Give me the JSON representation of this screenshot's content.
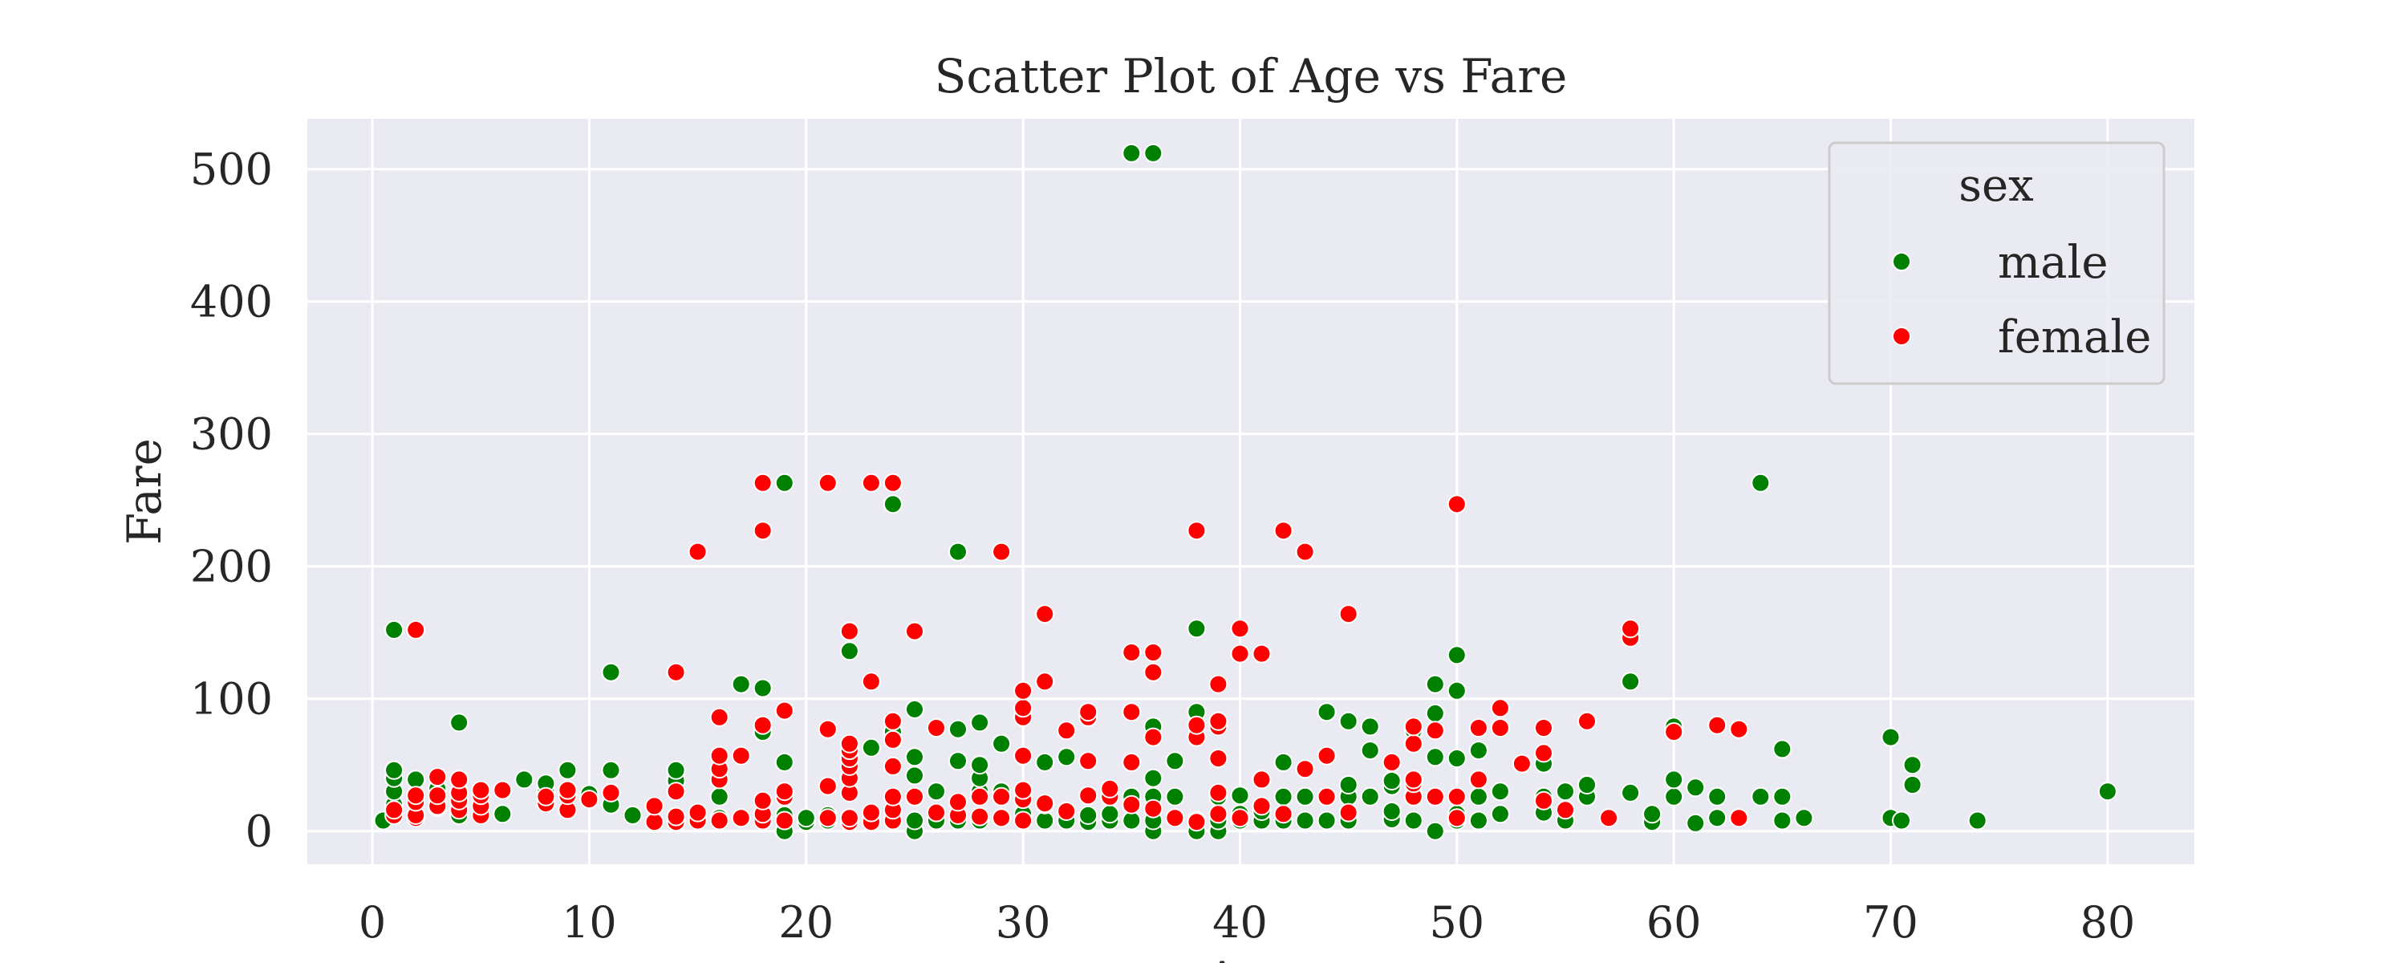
{
  "chart_data": {
    "type": "scatter",
    "title": "Scatter Plot of Age vs Fare",
    "xlabel": "Age",
    "ylabel": "Fare",
    "xlim": [
      -3,
      84
    ],
    "ylim": [
      -25,
      538
    ],
    "xticks": [
      0,
      10,
      20,
      30,
      40,
      50,
      60,
      70,
      80
    ],
    "yticks": [
      0,
      100,
      200,
      300,
      400,
      500
    ],
    "grid": true,
    "legend": {
      "title": "sex",
      "placement": "top-right"
    },
    "series": [
      {
        "name": "male",
        "color": "#008000",
        "points": [
          [
            0.5,
            8
          ],
          [
            1,
            20
          ],
          [
            1,
            30
          ],
          [
            1,
            40
          ],
          [
            1,
            46
          ],
          [
            1,
            152
          ],
          [
            2,
            39
          ],
          [
            3,
            18
          ],
          [
            3,
            25
          ],
          [
            3,
            32
          ],
          [
            4,
            12
          ],
          [
            4,
            30
          ],
          [
            4,
            82
          ],
          [
            5,
            28
          ],
          [
            6,
            13
          ],
          [
            7,
            39
          ],
          [
            8,
            30
          ],
          [
            8,
            36
          ],
          [
            9,
            46
          ],
          [
            10,
            28
          ],
          [
            11,
            20
          ],
          [
            11,
            46
          ],
          [
            11,
            120
          ],
          [
            12,
            12
          ],
          [
            14,
            11
          ],
          [
            14,
            38
          ],
          [
            14,
            46
          ],
          [
            16,
            10
          ],
          [
            16,
            26
          ],
          [
            17,
            10
          ],
          [
            17,
            111
          ],
          [
            18,
            9
          ],
          [
            18,
            75
          ],
          [
            18,
            108
          ],
          [
            19,
            0
          ],
          [
            19,
            8
          ],
          [
            19,
            12
          ],
          [
            19,
            52
          ],
          [
            19,
            263
          ],
          [
            20,
            7
          ],
          [
            20,
            10
          ],
          [
            21,
            8
          ],
          [
            21,
            12
          ],
          [
            22,
            10
          ],
          [
            22,
            136
          ],
          [
            23,
            9
          ],
          [
            23,
            63
          ],
          [
            24,
            9
          ],
          [
            24,
            15
          ],
          [
            24,
            75
          ],
          [
            24,
            247
          ],
          [
            25,
            0
          ],
          [
            25,
            8
          ],
          [
            25,
            42
          ],
          [
            25,
            56
          ],
          [
            25,
            92
          ],
          [
            26,
            8
          ],
          [
            26,
            30
          ],
          [
            27,
            8
          ],
          [
            27,
            53
          ],
          [
            27,
            77
          ],
          [
            27,
            211
          ],
          [
            28,
            8
          ],
          [
            28,
            30
          ],
          [
            28,
            40
          ],
          [
            28,
            50
          ],
          [
            28,
            82
          ],
          [
            29,
            10
          ],
          [
            29,
            30
          ],
          [
            29,
            66
          ],
          [
            30,
            8
          ],
          [
            30,
            13
          ],
          [
            30,
            30
          ],
          [
            31,
            8
          ],
          [
            31,
            20
          ],
          [
            31,
            52
          ],
          [
            32,
            8
          ],
          [
            32,
            56
          ],
          [
            32,
            76
          ],
          [
            33,
            7
          ],
          [
            33,
            12
          ],
          [
            34,
            8
          ],
          [
            34,
            13
          ],
          [
            34,
            26
          ],
          [
            35,
            8
          ],
          [
            35,
            26
          ],
          [
            35,
            512
          ],
          [
            36,
            0
          ],
          [
            36,
            8
          ],
          [
            36,
            26
          ],
          [
            36,
            40
          ],
          [
            36,
            79
          ],
          [
            36,
            512
          ],
          [
            37,
            26
          ],
          [
            37,
            53
          ],
          [
            38,
            0
          ],
          [
            38,
            8
          ],
          [
            38,
            90
          ],
          [
            38,
            153
          ],
          [
            39,
            0
          ],
          [
            39,
            8
          ],
          [
            39,
            26
          ],
          [
            40,
            8
          ],
          [
            40,
            13
          ],
          [
            40,
            27
          ],
          [
            41,
            8
          ],
          [
            41,
            15
          ],
          [
            42,
            8
          ],
          [
            42,
            26
          ],
          [
            42,
            52
          ],
          [
            43,
            8
          ],
          [
            43,
            26
          ],
          [
            44,
            8
          ],
          [
            44,
            26
          ],
          [
            44,
            90
          ],
          [
            45,
            8
          ],
          [
            45,
            26
          ],
          [
            45,
            35
          ],
          [
            45,
            83
          ],
          [
            46,
            26
          ],
          [
            46,
            61
          ],
          [
            46,
            79
          ],
          [
            47,
            9
          ],
          [
            47,
            15
          ],
          [
            47,
            34
          ],
          [
            47,
            38
          ],
          [
            48,
            8
          ],
          [
            48,
            27
          ],
          [
            48,
            76
          ],
          [
            49,
            0
          ],
          [
            49,
            26
          ],
          [
            49,
            56
          ],
          [
            49,
            89
          ],
          [
            49,
            111
          ],
          [
            50,
            8
          ],
          [
            50,
            13
          ],
          [
            50,
            55
          ],
          [
            50,
            106
          ],
          [
            50,
            133
          ],
          [
            51,
            8
          ],
          [
            51,
            26
          ],
          [
            51,
            61
          ],
          [
            52,
            13
          ],
          [
            52,
            30
          ],
          [
            54,
            14
          ],
          [
            54,
            26
          ],
          [
            54,
            51
          ],
          [
            55,
            8
          ],
          [
            55,
            30
          ],
          [
            56,
            26
          ],
          [
            56,
            35
          ],
          [
            58,
            29
          ],
          [
            58,
            113
          ],
          [
            59,
            7
          ],
          [
            59,
            13
          ],
          [
            60,
            26
          ],
          [
            60,
            39
          ],
          [
            60,
            79
          ],
          [
            61,
            6
          ],
          [
            61,
            33
          ],
          [
            62,
            10
          ],
          [
            62,
            26
          ],
          [
            64,
            26
          ],
          [
            64,
            263
          ],
          [
            65,
            8
          ],
          [
            65,
            26
          ],
          [
            65,
            62
          ],
          [
            66,
            10
          ],
          [
            70,
            10
          ],
          [
            70,
            71
          ],
          [
            70.5,
            8
          ],
          [
            71,
            35
          ],
          [
            71,
            50
          ],
          [
            74,
            8
          ],
          [
            80,
            30
          ]
        ]
      },
      {
        "name": "female",
        "color": "#ff0000",
        "points": [
          [
            1,
            12
          ],
          [
            1,
            16
          ],
          [
            2,
            10
          ],
          [
            2,
            12
          ],
          [
            2,
            22
          ],
          [
            2,
            27
          ],
          [
            2,
            152
          ],
          [
            3,
            19
          ],
          [
            3,
            27
          ],
          [
            3,
            41
          ],
          [
            4,
            16
          ],
          [
            4,
            23
          ],
          [
            4,
            29
          ],
          [
            4,
            39
          ],
          [
            5,
            12
          ],
          [
            5,
            19
          ],
          [
            5,
            27
          ],
          [
            5,
            31
          ],
          [
            6,
            31
          ],
          [
            8,
            21
          ],
          [
            8,
            26
          ],
          [
            9,
            16
          ],
          [
            9,
            27
          ],
          [
            9,
            31
          ],
          [
            10,
            24
          ],
          [
            11,
            29
          ],
          [
            13,
            7
          ],
          [
            13,
            19
          ],
          [
            14,
            7
          ],
          [
            14,
            11
          ],
          [
            14,
            30
          ],
          [
            14,
            120
          ],
          [
            15,
            8
          ],
          [
            15,
            14
          ],
          [
            15,
            211
          ],
          [
            16,
            8
          ],
          [
            16,
            39
          ],
          [
            16,
            47
          ],
          [
            16,
            57
          ],
          [
            16,
            86
          ],
          [
            17,
            10
          ],
          [
            17,
            57
          ],
          [
            18,
            8
          ],
          [
            18,
            13
          ],
          [
            18,
            23
          ],
          [
            18,
            80
          ],
          [
            18,
            227
          ],
          [
            18,
            263
          ],
          [
            19,
            8
          ],
          [
            19,
            26
          ],
          [
            19,
            30
          ],
          [
            19,
            91
          ],
          [
            21,
            10
          ],
          [
            21,
            34
          ],
          [
            21,
            77
          ],
          [
            21,
            263
          ],
          [
            22,
            7
          ],
          [
            22,
            10
          ],
          [
            22,
            29
          ],
          [
            22,
            40
          ],
          [
            22,
            49
          ],
          [
            22,
            55
          ],
          [
            22,
            61
          ],
          [
            22,
            66
          ],
          [
            22,
            151
          ],
          [
            23,
            7
          ],
          [
            23,
            14
          ],
          [
            23,
            113
          ],
          [
            23,
            263
          ],
          [
            24,
            8
          ],
          [
            24,
            16
          ],
          [
            24,
            26
          ],
          [
            24,
            49
          ],
          [
            24,
            69
          ],
          [
            24,
            83
          ],
          [
            24,
            263
          ],
          [
            25,
            26
          ],
          [
            25,
            151
          ],
          [
            26,
            14
          ],
          [
            26,
            78
          ],
          [
            27,
            12
          ],
          [
            27,
            22
          ],
          [
            28,
            11
          ],
          [
            28,
            26
          ],
          [
            29,
            10
          ],
          [
            29,
            26
          ],
          [
            29,
            211
          ],
          [
            30,
            8
          ],
          [
            30,
            24
          ],
          [
            30,
            31
          ],
          [
            30,
            57
          ],
          [
            30,
            86
          ],
          [
            30,
            93
          ],
          [
            30,
            106
          ],
          [
            31,
            21
          ],
          [
            31,
            113
          ],
          [
            31,
            164
          ],
          [
            32,
            15
          ],
          [
            32,
            76
          ],
          [
            33,
            27
          ],
          [
            33,
            53
          ],
          [
            33,
            86
          ],
          [
            33,
            90
          ],
          [
            34,
            26
          ],
          [
            34,
            32
          ],
          [
            35,
            20
          ],
          [
            35,
            52
          ],
          [
            35,
            90
          ],
          [
            35,
            135
          ],
          [
            36,
            17
          ],
          [
            36,
            71
          ],
          [
            36,
            120
          ],
          [
            36,
            135
          ],
          [
            37,
            10
          ],
          [
            38,
            7
          ],
          [
            38,
            71
          ],
          [
            38,
            80
          ],
          [
            38,
            227
          ],
          [
            39,
            13
          ],
          [
            39,
            29
          ],
          [
            39,
            55
          ],
          [
            39,
            79
          ],
          [
            39,
            83
          ],
          [
            39,
            111
          ],
          [
            40,
            10
          ],
          [
            40,
            134
          ],
          [
            40,
            153
          ],
          [
            41,
            19
          ],
          [
            41,
            39
          ],
          [
            41,
            134
          ],
          [
            42,
            13
          ],
          [
            42,
            227
          ],
          [
            43,
            47
          ],
          [
            43,
            211
          ],
          [
            44,
            26
          ],
          [
            44,
            57
          ],
          [
            45,
            14
          ],
          [
            45,
            164
          ],
          [
            47,
            52
          ],
          [
            48,
            26
          ],
          [
            48,
            36
          ],
          [
            48,
            39
          ],
          [
            48,
            66
          ],
          [
            48,
            79
          ],
          [
            49,
            26
          ],
          [
            49,
            76
          ],
          [
            50,
            10
          ],
          [
            50,
            26
          ],
          [
            50,
            247
          ],
          [
            51,
            39
          ],
          [
            51,
            78
          ],
          [
            52,
            78
          ],
          [
            52,
            93
          ],
          [
            53,
            51
          ],
          [
            54,
            23
          ],
          [
            54,
            59
          ],
          [
            54,
            78
          ],
          [
            55,
            16
          ],
          [
            56,
            83
          ],
          [
            57,
            10
          ],
          [
            58,
            146
          ],
          [
            58,
            153
          ],
          [
            60,
            75
          ],
          [
            62,
            80
          ],
          [
            63,
            10
          ],
          [
            63,
            77
          ]
        ]
      }
    ]
  }
}
